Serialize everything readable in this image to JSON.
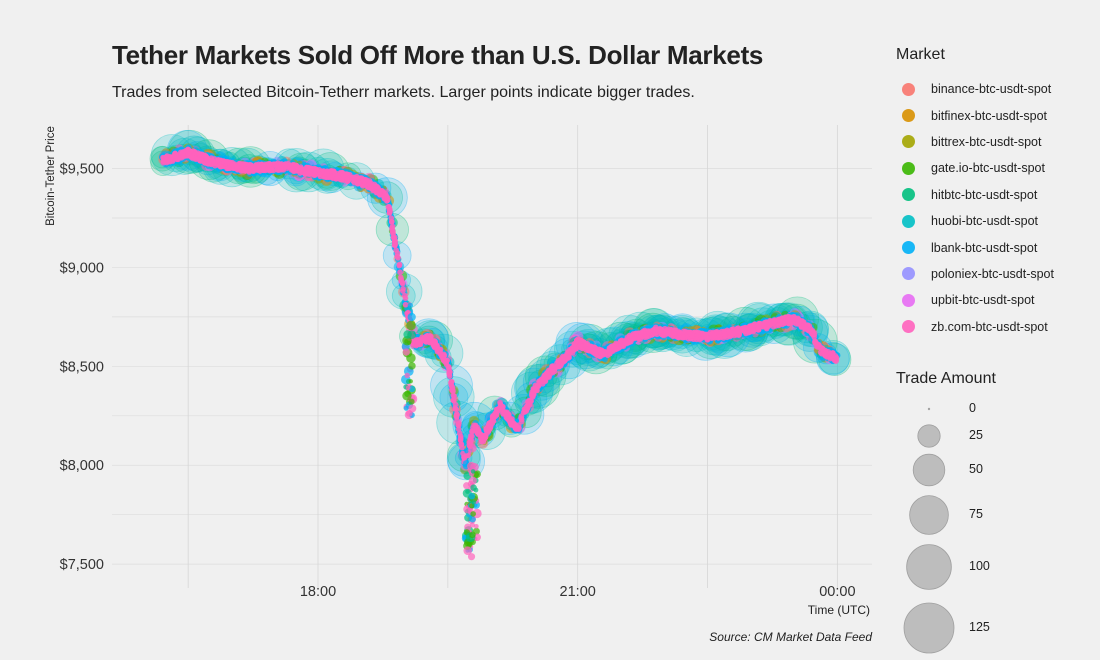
{
  "chart_data": {
    "type": "scatter",
    "title": "Tether Markets Sold Off More than U.S. Dollar Markets",
    "subtitle": "Trades from selected Bitcoin-Tetherr markets. Larger points indicate bigger trades.",
    "xlabel": "Time (UTC)",
    "ylabel": "Bitcoin-Tether Price",
    "x_ticks": [
      "18:00",
      "21:00",
      "00:00"
    ],
    "y_ticks": [
      "$9,500",
      "$9,000",
      "$8,500",
      "$8,000",
      "$7,500"
    ],
    "y_tick_values": [
      9500,
      9000,
      8500,
      8000,
      7500
    ],
    "ylim": [
      7430,
      9720
    ],
    "xlim_hours": [
      15.62,
      24.4
    ],
    "x_tick_hours": [
      18,
      21,
      24
    ],
    "grid": true,
    "legend_placement": "right",
    "source": "Source: CM Market Data Feed",
    "price_path": {
      "time_hours": [
        16.2,
        16.5,
        16.8,
        17.2,
        17.6,
        18.0,
        18.3,
        18.6,
        18.8,
        18.9,
        19.0,
        19.1,
        19.3,
        19.5,
        19.7,
        19.8,
        19.9,
        20.1,
        20.3,
        20.5,
        20.7,
        20.9,
        21.0,
        21.3,
        21.6,
        21.9,
        22.2,
        22.5,
        22.8,
        23.1,
        23.3,
        23.5,
        23.7,
        23.8,
        24.0
      ],
      "price": [
        9540,
        9580,
        9530,
        9500,
        9510,
        9480,
        9460,
        9420,
        9350,
        9100,
        8850,
        8620,
        8640,
        8520,
        8000,
        8200,
        8130,
        8300,
        8180,
        8380,
        8480,
        8560,
        8620,
        8560,
        8640,
        8680,
        8660,
        8650,
        8670,
        8700,
        8720,
        8740,
        8680,
        8580,
        8540
      ]
    },
    "series": [
      {
        "name": "binance-btc-usdt-spot",
        "color": "#f8766d"
      },
      {
        "name": "bitfinex-btc-usdt-spot",
        "color": "#d89000"
      },
      {
        "name": "bittrex-btc-usdt-spot",
        "color": "#a3a500"
      },
      {
        "name": "gate.io-btc-usdt-spot",
        "color": "#39b600"
      },
      {
        "name": "hitbtc-btc-usdt-spot",
        "color": "#00bf7d"
      },
      {
        "name": "huobi-btc-usdt-spot",
        "color": "#00bfc4"
      },
      {
        "name": "lbank-btc-usdt-spot",
        "color": "#00b0f6"
      },
      {
        "name": "poloniex-btc-usdt-spot",
        "color": "#9590ff"
      },
      {
        "name": "upbit-btc-usdt-spot",
        "color": "#e76bf3"
      },
      {
        "name": "zb.com-btc-usdt-spot",
        "color": "#ff62bc"
      }
    ],
    "size_legend": {
      "title": "Trade Amount",
      "values": [
        0,
        25,
        50,
        75,
        100,
        125
      ],
      "labels": [
        "0",
        "25",
        "50",
        "75",
        "100",
        "125"
      ]
    }
  }
}
